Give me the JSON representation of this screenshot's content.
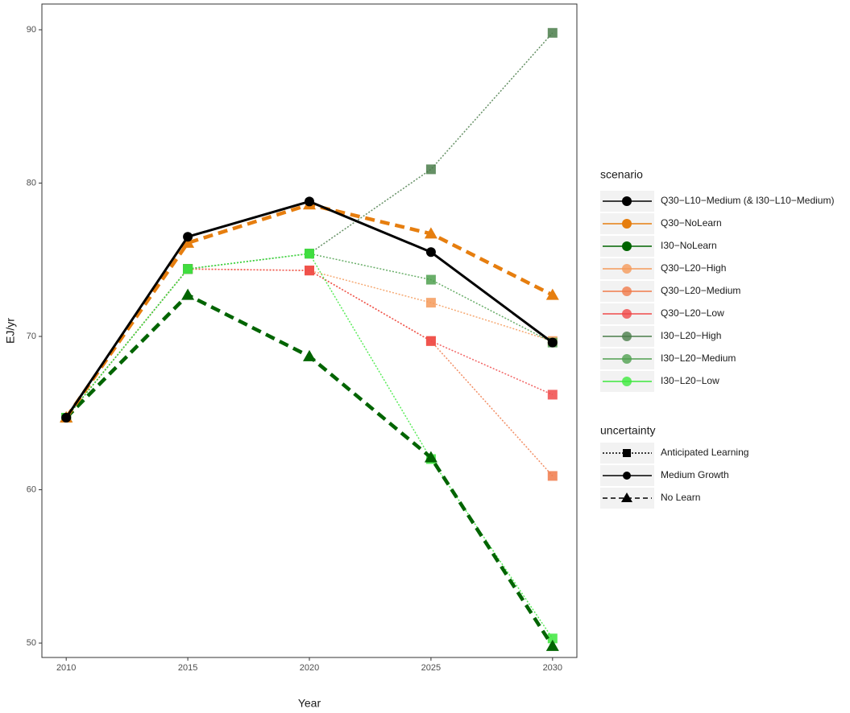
{
  "chart_data": {
    "type": "line",
    "x_label": "Year",
    "y_label": "EJ/yr",
    "x": [
      2010,
      2015,
      2020,
      2025,
      2030
    ],
    "xlim": [
      2009,
      2031
    ],
    "xticks": [
      2010,
      2015,
      2020,
      2025,
      2030
    ],
    "ylim": [
      49.06,
      91.68
    ],
    "yticks": [
      50,
      60,
      70,
      80,
      90
    ],
    "grid": false,
    "legend_position": "right",
    "series": [
      {
        "name": "Q30−L10−Medium (& I30−L10−Medium)",
        "color": "#000000",
        "linetype": "solid",
        "shape": "circle",
        "values": [
          64.7,
          76.5,
          78.8,
          75.5,
          69.6
        ]
      },
      {
        "name": "Q30−NoLearn",
        "color": "#e67e0f",
        "linetype": "dashed",
        "shape": "triangle",
        "values": [
          64.7,
          76.1,
          78.6,
          76.7,
          72.7
        ]
      },
      {
        "name": "I30−NoLearn",
        "color": "#006400",
        "linetype": "dashed",
        "shape": "triangle",
        "values": [
          64.7,
          72.7,
          68.7,
          62.1,
          49.8
        ]
      },
      {
        "name": "Q30−L20−High",
        "color": "#f59a5a",
        "linetype": "dotted",
        "shape": "square",
        "values": [
          64.7,
          74.4,
          74.3,
          72.2,
          69.7
        ]
      },
      {
        "name": "Q30−L20−Medium",
        "color": "#f07a4a",
        "linetype": "dotted",
        "shape": "square",
        "values": [
          64.7,
          74.4,
          74.3,
          69.7,
          60.9
        ]
      },
      {
        "name": "Q30−L20−Low",
        "color": "#f04a4a",
        "linetype": "dotted",
        "shape": "square",
        "values": [
          64.7,
          74.4,
          74.3,
          69.7,
          66.2
        ]
      },
      {
        "name": "I30−L20−High",
        "color": "#4a7d4a",
        "linetype": "dotted",
        "shape": "square",
        "values": [
          64.7,
          74.4,
          75.4,
          80.9,
          89.8
        ]
      },
      {
        "name": "I30−L20−Medium",
        "color": "#4fa04f",
        "linetype": "dotted",
        "shape": "square",
        "values": [
          64.7,
          74.4,
          75.4,
          73.7,
          69.6
        ]
      },
      {
        "name": "I30−L20−Low",
        "color": "#3de83d",
        "linetype": "dotted",
        "shape": "square",
        "values": [
          64.7,
          74.4,
          75.4,
          62.0,
          50.3
        ]
      }
    ],
    "legend_scenario_title": "scenario",
    "legend_uncertainty_title": "uncertainty",
    "uncertainty": [
      {
        "name": "Anticipated Learning",
        "linetype": "dotted",
        "shape": "square"
      },
      {
        "name": "Medium Growth",
        "linetype": "solid",
        "shape": "circle"
      },
      {
        "name": "No Learn",
        "linetype": "dashed",
        "shape": "triangle"
      }
    ]
  }
}
